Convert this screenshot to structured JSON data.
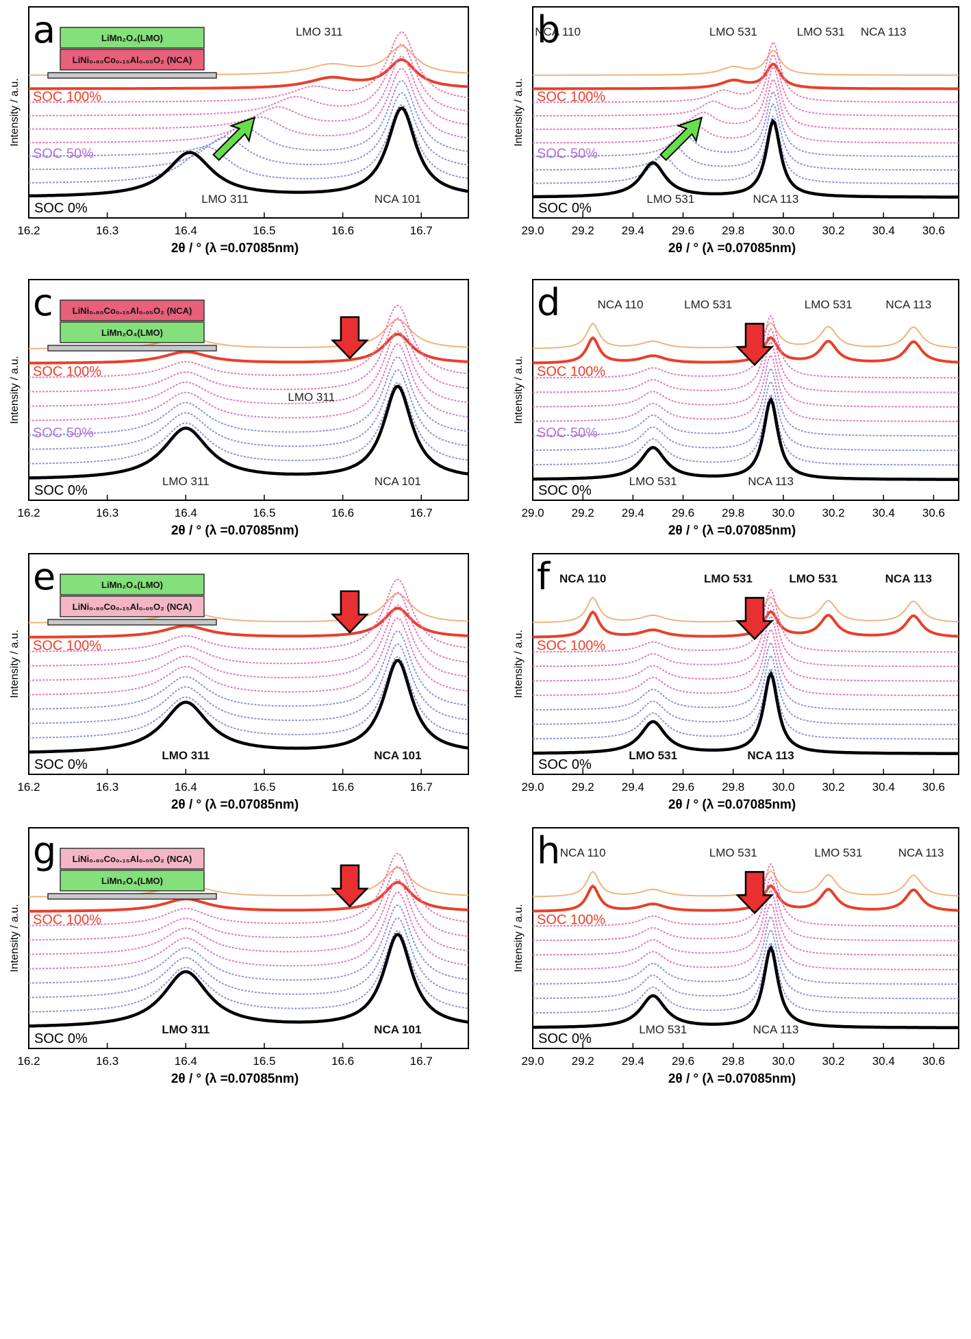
{
  "figure": {
    "colors": {
      "soc0": "#000000",
      "soc100": "#e8402a",
      "blue": "#8c93d9",
      "pink": "#e57ab8",
      "orange": "#f3b27a",
      "lmo_layer": "#84e07a",
      "nca_layer_dark": "#e8607a",
      "nca_layer_light": "#f4b6c6",
      "green_arrow": "#66e04a",
      "red_arrow": "#e83030"
    },
    "shared": {
      "ylabel": "Intensity / a.u.",
      "xlabel": "2θ / ° (λ =0.07085nm)",
      "soc0": "SOC 0%",
      "soc50": "SOC 50%",
      "soc100": "SOC 100%",
      "lmo_layer": "LiMn₂O₄(LMO)",
      "nca_layer": "LiNi₀.₈₀Co₀.₁₅Al₀.₀₅O₂ (NCA)"
    }
  },
  "chart_data": [
    {
      "panel": "a",
      "type": "line",
      "xlim": [
        16.2,
        16.76
      ],
      "xticks": [
        "16.2",
        "16.3",
        "16.4",
        "16.5",
        "16.6",
        "16.7"
      ],
      "stack_order": [
        "LMO",
        "NCA"
      ],
      "arrow": "up-right",
      "show_soc50": true,
      "annotations": [
        {
          "text": "LMO 311",
          "x": 16.45,
          "pos": "bottom"
        },
        {
          "text": "NCA 101",
          "x": 16.67,
          "pos": "bottom"
        },
        {
          "text": "LMO 311",
          "x": 16.57,
          "pos": "top"
        }
      ],
      "peaks": [
        {
          "name": "LMO 311",
          "x_start": 16.405,
          "x_end": 16.585,
          "intensity": 0.5
        },
        {
          "name": "NCA 101",
          "x_start": 16.675,
          "x_end": 16.675,
          "intensity": 1.0
        }
      ]
    },
    {
      "panel": "b",
      "type": "line",
      "xlim": [
        29.0,
        30.7
      ],
      "xticks": [
        "29.0",
        "29.2",
        "29.4",
        "29.6",
        "29.8",
        "30.0",
        "30.2",
        "30.4",
        "30.6"
      ],
      "arrow": "up-right",
      "show_soc50": true,
      "annotations": [
        {
          "text": "NCA 110",
          "x": 29.1,
          "pos": "top"
        },
        {
          "text": "LMO 531",
          "x": 29.8,
          "pos": "top"
        },
        {
          "text": "LMO 531",
          "x": 30.15,
          "pos": "top"
        },
        {
          "text": "NCA 113",
          "x": 30.4,
          "pos": "top"
        },
        {
          "text": "LMO 531",
          "x": 29.55,
          "pos": "bottom"
        },
        {
          "text": "NCA 113",
          "x": 29.97,
          "pos": "bottom"
        }
      ],
      "peaks": [
        {
          "name": "LMO 531",
          "x_start": 29.48,
          "x_end": 29.8,
          "intensity": 0.45
        },
        {
          "name": "NCA 113",
          "x_start": 29.96,
          "x_end": 29.96,
          "intensity": 1.0
        }
      ]
    },
    {
      "panel": "c",
      "type": "line",
      "xlim": [
        16.2,
        16.76
      ],
      "xticks": [
        "16.2",
        "16.3",
        "16.4",
        "16.5",
        "16.6",
        "16.7"
      ],
      "stack_order": [
        "NCA",
        "LMO"
      ],
      "arrow": "down",
      "show_soc50": true,
      "annotations": [
        {
          "text": "LMO 311",
          "x": 16.4,
          "pos": "bottom"
        },
        {
          "text": "NCA 101",
          "x": 16.67,
          "pos": "bottom"
        },
        {
          "text": "LMO 311",
          "x": 16.56,
          "pos": "mid"
        }
      ],
      "peaks": [
        {
          "name": "LMO 311",
          "x_start": 16.4,
          "x_end": 16.4,
          "intensity": 0.55
        },
        {
          "name": "NCA 101",
          "x_start": 16.67,
          "x_end": 16.67,
          "intensity": 1.0
        }
      ]
    },
    {
      "panel": "d",
      "type": "line",
      "xlim": [
        29.0,
        30.7
      ],
      "xticks": [
        "29.0",
        "29.2",
        "29.4",
        "29.6",
        "29.8",
        "30.0",
        "30.2",
        "30.4",
        "30.6"
      ],
      "arrow": "down",
      "show_soc50": true,
      "annotations": [
        {
          "text": "NCA 110",
          "x": 29.35,
          "pos": "top"
        },
        {
          "text": "LMO 531",
          "x": 29.7,
          "pos": "top"
        },
        {
          "text": "LMO 531",
          "x": 30.18,
          "pos": "top"
        },
        {
          "text": "NCA 113",
          "x": 30.5,
          "pos": "top"
        },
        {
          "text": "LMO 531",
          "x": 29.48,
          "pos": "bottom"
        },
        {
          "text": "NCA 113",
          "x": 29.95,
          "pos": "bottom"
        }
      ],
      "peaks": [
        {
          "name": "LMO 531",
          "x_start": 29.48,
          "x_end": 29.48,
          "intensity": 0.4
        },
        {
          "name": "NCA 113",
          "x_start": 29.95,
          "x_end": 29.95,
          "intensity": 1.0
        }
      ]
    },
    {
      "panel": "e",
      "type": "line",
      "xlim": [
        16.2,
        16.76
      ],
      "xticks": [
        "16.2",
        "16.3",
        "16.4",
        "16.5",
        "16.6",
        "16.7"
      ],
      "stack_order": [
        "LMO",
        "NCA"
      ],
      "arrow": "down",
      "show_soc50": false,
      "annotations": [
        {
          "text": "LMO 311",
          "x": 16.4,
          "pos": "bottom"
        },
        {
          "text": "NCA 101",
          "x": 16.67,
          "pos": "bottom"
        }
      ],
      "peaks": [
        {
          "name": "LMO 311",
          "x_start": 16.4,
          "x_end": 16.4,
          "intensity": 0.55
        },
        {
          "name": "NCA 101",
          "x_start": 16.67,
          "x_end": 16.67,
          "intensity": 1.0
        }
      ]
    },
    {
      "panel": "f",
      "type": "line",
      "xlim": [
        29.0,
        30.7
      ],
      "xticks": [
        "29.0",
        "29.2",
        "29.4",
        "29.6",
        "29.8",
        "30.0",
        "30.2",
        "30.4",
        "30.6"
      ],
      "arrow": "down",
      "show_soc50": false,
      "annotations": [
        {
          "text": "NCA 110",
          "x": 29.2,
          "pos": "top"
        },
        {
          "text": "LMO 531",
          "x": 29.78,
          "pos": "top"
        },
        {
          "text": "LMO 531",
          "x": 30.12,
          "pos": "top"
        },
        {
          "text": "NCA 113",
          "x": 30.5,
          "pos": "top"
        },
        {
          "text": "LMO 531",
          "x": 29.48,
          "pos": "bottom"
        },
        {
          "text": "NCA 113",
          "x": 29.95,
          "pos": "bottom"
        }
      ],
      "peaks": [
        {
          "name": "LMO 531",
          "x_start": 29.48,
          "x_end": 29.48,
          "intensity": 0.4
        },
        {
          "name": "NCA 113",
          "x_start": 29.95,
          "x_end": 29.95,
          "intensity": 1.0
        }
      ]
    },
    {
      "panel": "g",
      "type": "line",
      "xlim": [
        16.2,
        16.76
      ],
      "xticks": [
        "16.2",
        "16.3",
        "16.4",
        "16.5",
        "16.6",
        "16.7"
      ],
      "stack_order": [
        "NCA",
        "LMO"
      ],
      "arrow": "down",
      "show_soc50": false,
      "annotations": [
        {
          "text": "LMO 311",
          "x": 16.4,
          "pos": "bottom"
        },
        {
          "text": "NCA 101",
          "x": 16.67,
          "pos": "bottom"
        }
      ],
      "peaks": [
        {
          "name": "LMO 311",
          "x_start": 16.4,
          "x_end": 16.4,
          "intensity": 0.6
        },
        {
          "name": "NCA 101",
          "x_start": 16.67,
          "x_end": 16.67,
          "intensity": 1.0
        }
      ]
    },
    {
      "panel": "h",
      "type": "line",
      "xlim": [
        29.0,
        30.7
      ],
      "xticks": [
        "29.0",
        "29.2",
        "29.4",
        "29.6",
        "29.8",
        "30.0",
        "30.2",
        "30.4",
        "30.6"
      ],
      "arrow": "down",
      "show_soc50": false,
      "annotations": [
        {
          "text": "NCA 110",
          "x": 29.2,
          "pos": "top"
        },
        {
          "text": "LMO 531",
          "x": 29.8,
          "pos": "top"
        },
        {
          "text": "LMO 531",
          "x": 30.22,
          "pos": "top"
        },
        {
          "text": "NCA 113",
          "x": 30.55,
          "pos": "top"
        },
        {
          "text": "LMO 531",
          "x": 29.52,
          "pos": "bottom"
        },
        {
          "text": "NCA 113",
          "x": 29.97,
          "pos": "bottom"
        }
      ],
      "peaks": [
        {
          "name": "LMO 531",
          "x_start": 29.48,
          "x_end": 29.48,
          "intensity": 0.4
        },
        {
          "name": "NCA 113",
          "x_start": 29.95,
          "x_end": 29.95,
          "intensity": 1.0
        }
      ]
    }
  ]
}
